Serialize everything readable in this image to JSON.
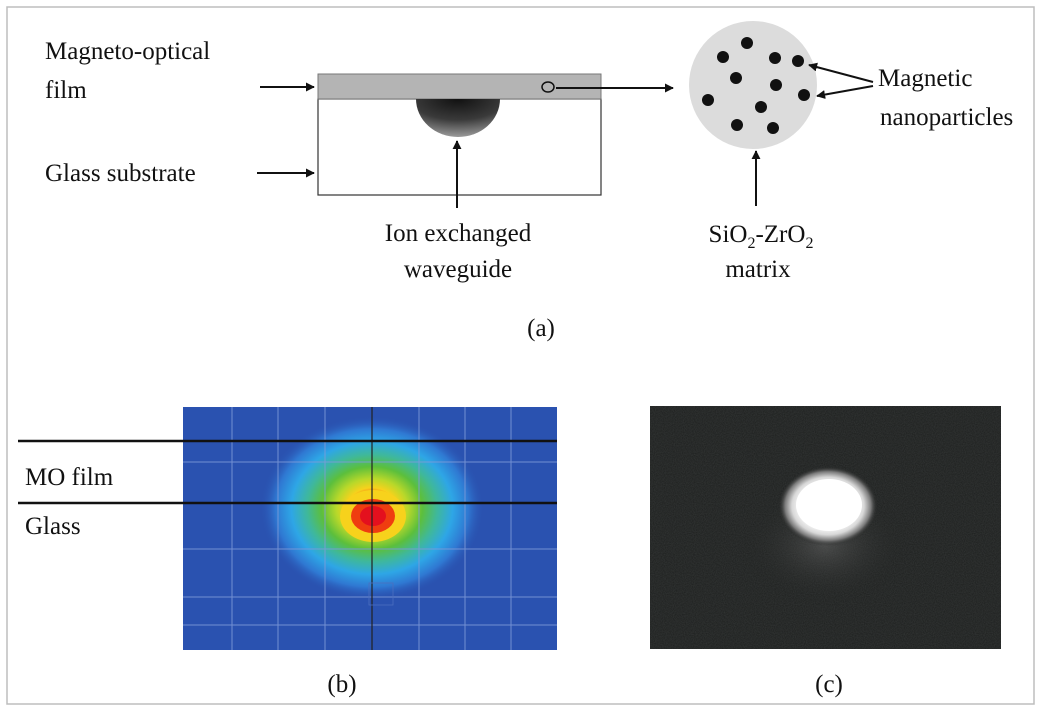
{
  "panel_a": {
    "labels": {
      "mo_film_line1": "Magneto-optical",
      "mo_film_line2": "film",
      "glass_substrate": "Glass substrate",
      "waveguide_line1": "Ion exchanged",
      "waveguide_line2": "waveguide",
      "nanoparticles_line1": "Magnetic",
      "nanoparticles_line2": "nanoparticles",
      "matrix_line1_sio": "SiO",
      "matrix_line1_sub1": "2",
      "matrix_line1_zro": "-ZrO",
      "matrix_line1_sub2": "2",
      "matrix_line2": "matrix"
    },
    "caption": "(a)"
  },
  "panel_b": {
    "labels": {
      "mo_film": "MO film",
      "glass": "Glass"
    },
    "caption": "(b)"
  },
  "panel_c": {
    "caption": "(c)"
  },
  "colors": {
    "film": "#b4b4b4",
    "waveguide_dark": "#1e1e1e",
    "matrix_fill": "#dcdcdc",
    "field_background": "#2a52b0",
    "camera_background": "#1c1e1d"
  }
}
